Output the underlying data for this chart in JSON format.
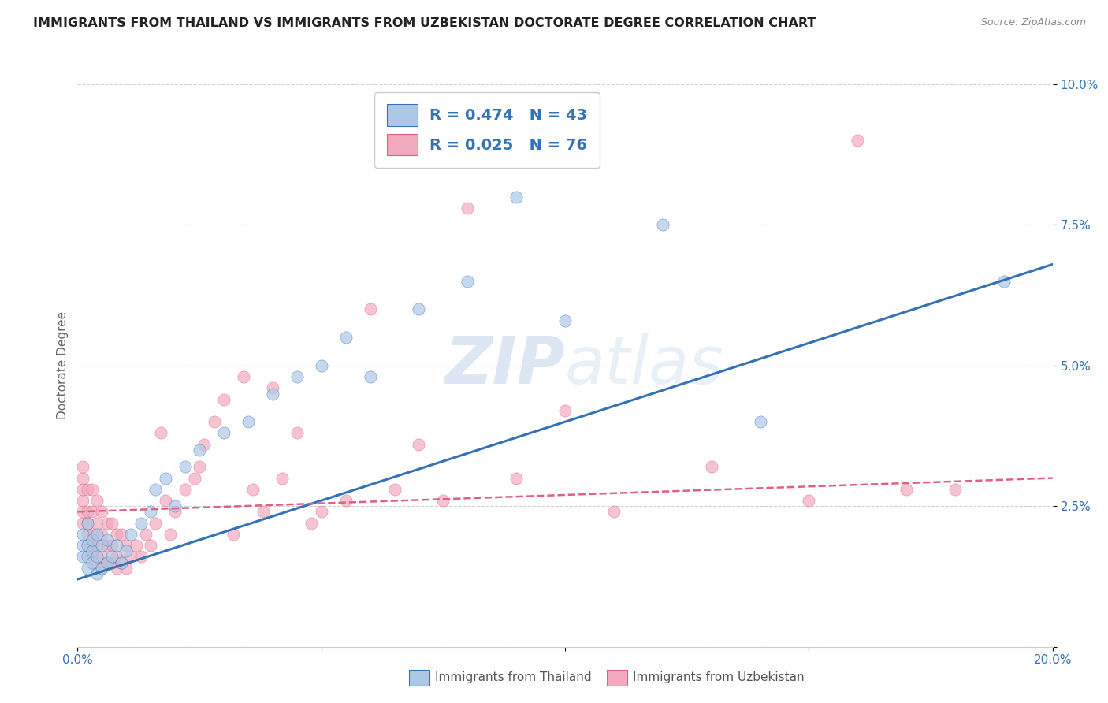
{
  "title": "IMMIGRANTS FROM THAILAND VS IMMIGRANTS FROM UZBEKISTAN DOCTORATE DEGREE CORRELATION CHART",
  "source": "Source: ZipAtlas.com",
  "ylabel": "Doctorate Degree",
  "xlim": [
    0.0,
    0.2
  ],
  "ylim": [
    0.0,
    0.1
  ],
  "xticks": [
    0.0,
    0.05,
    0.1,
    0.15,
    0.2
  ],
  "yticks": [
    0.0,
    0.025,
    0.05,
    0.075,
    0.1
  ],
  "xtick_labels": [
    "0.0%",
    "",
    "",
    "",
    "20.0%"
  ],
  "ytick_labels": [
    "",
    "2.5%",
    "5.0%",
    "7.5%",
    "10.0%"
  ],
  "legend_labels": [
    "Immigrants from Thailand",
    "Immigrants from Uzbekistan"
  ],
  "r_thailand": 0.474,
  "n_thailand": 43,
  "r_uzbekistan": 0.025,
  "n_uzbekistan": 76,
  "color_thailand": "#adc8e6",
  "color_uzbekistan": "#f2aabe",
  "line_color_thailand": "#3472b5",
  "line_color_uzbekistan": "#e06080",
  "background_color": "#ffffff",
  "watermark_zip": "ZIP",
  "watermark_atlas": "atlas",
  "thailand_x": [
    0.001,
    0.001,
    0.001,
    0.002,
    0.002,
    0.002,
    0.002,
    0.003,
    0.003,
    0.003,
    0.004,
    0.004,
    0.004,
    0.005,
    0.005,
    0.006,
    0.006,
    0.007,
    0.008,
    0.009,
    0.01,
    0.011,
    0.013,
    0.015,
    0.016,
    0.018,
    0.02,
    0.022,
    0.025,
    0.03,
    0.035,
    0.04,
    0.045,
    0.05,
    0.055,
    0.06,
    0.07,
    0.08,
    0.09,
    0.1,
    0.12,
    0.14,
    0.19
  ],
  "thailand_y": [
    0.016,
    0.018,
    0.02,
    0.014,
    0.016,
    0.018,
    0.022,
    0.015,
    0.017,
    0.019,
    0.013,
    0.016,
    0.02,
    0.014,
    0.018,
    0.015,
    0.019,
    0.016,
    0.018,
    0.015,
    0.017,
    0.02,
    0.022,
    0.024,
    0.028,
    0.03,
    0.025,
    0.032,
    0.035,
    0.038,
    0.04,
    0.045,
    0.048,
    0.05,
    0.055,
    0.048,
    0.06,
    0.065,
    0.08,
    0.058,
    0.075,
    0.04,
    0.065
  ],
  "uzbekistan_x": [
    0.001,
    0.001,
    0.001,
    0.001,
    0.001,
    0.001,
    0.002,
    0.002,
    0.002,
    0.002,
    0.002,
    0.003,
    0.003,
    0.003,
    0.003,
    0.003,
    0.004,
    0.004,
    0.004,
    0.004,
    0.005,
    0.005,
    0.005,
    0.005,
    0.006,
    0.006,
    0.006,
    0.007,
    0.007,
    0.007,
    0.008,
    0.008,
    0.008,
    0.009,
    0.009,
    0.01,
    0.01,
    0.011,
    0.012,
    0.013,
    0.014,
    0.015,
    0.016,
    0.017,
    0.018,
    0.019,
    0.02,
    0.022,
    0.024,
    0.025,
    0.026,
    0.028,
    0.03,
    0.032,
    0.034,
    0.036,
    0.038,
    0.04,
    0.042,
    0.045,
    0.048,
    0.05,
    0.055,
    0.06,
    0.065,
    0.07,
    0.075,
    0.08,
    0.09,
    0.1,
    0.11,
    0.13,
    0.15,
    0.16,
    0.17,
    0.18
  ],
  "uzbekistan_y": [
    0.022,
    0.024,
    0.026,
    0.028,
    0.03,
    0.032,
    0.018,
    0.02,
    0.022,
    0.024,
    0.028,
    0.016,
    0.018,
    0.02,
    0.024,
    0.028,
    0.015,
    0.018,
    0.022,
    0.026,
    0.014,
    0.016,
    0.02,
    0.024,
    0.015,
    0.018,
    0.022,
    0.015,
    0.018,
    0.022,
    0.014,
    0.016,
    0.02,
    0.015,
    0.02,
    0.014,
    0.018,
    0.016,
    0.018,
    0.016,
    0.02,
    0.018,
    0.022,
    0.038,
    0.026,
    0.02,
    0.024,
    0.028,
    0.03,
    0.032,
    0.036,
    0.04,
    0.044,
    0.02,
    0.048,
    0.028,
    0.024,
    0.046,
    0.03,
    0.038,
    0.022,
    0.024,
    0.026,
    0.06,
    0.028,
    0.036,
    0.026,
    0.078,
    0.03,
    0.042,
    0.024,
    0.032,
    0.026,
    0.09,
    0.028,
    0.028
  ],
  "line_th_x0": 0.0,
  "line_th_y0": 0.012,
  "line_th_x1": 0.2,
  "line_th_y1": 0.068,
  "line_uz_x0": 0.0,
  "line_uz_y0": 0.024,
  "line_uz_x1": 0.2,
  "line_uz_y1": 0.03
}
